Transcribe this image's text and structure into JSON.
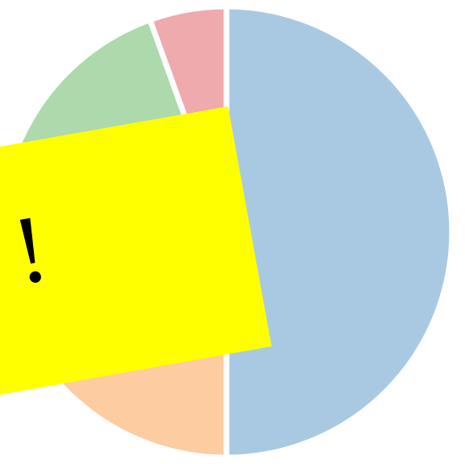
{
  "chart_data": {
    "type": "pie",
    "categories": [
      null,
      null,
      null,
      null
    ],
    "values": [
      50,
      22,
      22.5,
      5.5
    ],
    "colors": [
      "#a9c9e3",
      "#fdcca0",
      "#add9ad",
      "#eeaaad"
    ],
    "annotations": [
      "!"
    ]
  }
}
